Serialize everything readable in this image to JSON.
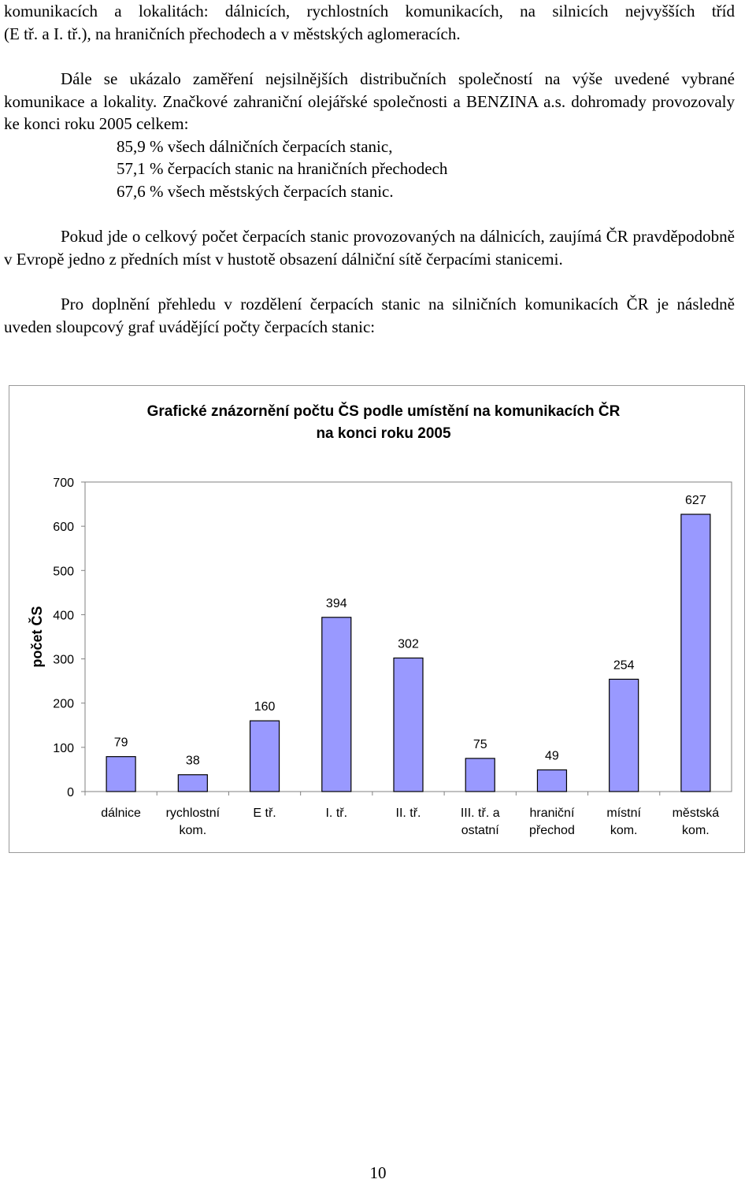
{
  "text": {
    "para0_line1": "komunikacích a lokalitách: dálnicích, rychlostních komunikacích, na silnicích nejvyšších tříd",
    "para0_line2": "(E tř. a I. tř.), na hraničních přechodech a v městských aglomeracích.",
    "para1_text": "Dále se ukázalo zaměření nejsilnějších distribučních společností na výše uvedené vybrané komunikace a lokality. Značkové zahraniční olejářské společnosti a BENZINA a.s. dohromady provozovaly ke konci roku 2005 celkem:",
    "bullets": [
      "85,9 % všech dálničních čerpacích stanic,",
      "57,1 % čerpacích stanic na hraničních přechodech",
      "67,6 % všech městských čerpacích stanic."
    ],
    "para2_text": "Pokud jde o celkový počet čerpacích stanic provozovaných na dálnicích, zaujímá ČR pravděpodobně v Evropě jedno z předních míst v hustotě obsazení dálniční sítě čerpacími stanicemi.",
    "para3_text": "Pro doplnění přehledu v rozdělení čerpacích stanic na silničních komunikacích ČR je následně uveden sloupcový graf uvádějící počty čerpacích stanic:"
  },
  "chart_data": {
    "type": "bar",
    "title_line1": "Grafické znázornění počtu ČS podle umístění na komunikacích ČR",
    "title_line2": "na konci roku 2005",
    "ylabel": "počet ČS",
    "xlabel": "",
    "ylim": [
      0,
      700
    ],
    "yticks": [
      0,
      100,
      200,
      300,
      400,
      500,
      600,
      700
    ],
    "categories": [
      [
        "dálnice"
      ],
      [
        "rychlostní",
        "kom."
      ],
      [
        "E tř."
      ],
      [
        "I. tř."
      ],
      [
        "II. tř."
      ],
      [
        "III. tř. a",
        "ostatní"
      ],
      [
        "hraniční",
        "přechod"
      ],
      [
        "místní",
        "kom."
      ],
      [
        "městská",
        "kom."
      ]
    ],
    "values": [
      79,
      38,
      160,
      394,
      302,
      75,
      49,
      254,
      627
    ],
    "grid": false,
    "legend": "none",
    "bar_color": "#9999ff"
  },
  "page": {
    "number": "10"
  }
}
